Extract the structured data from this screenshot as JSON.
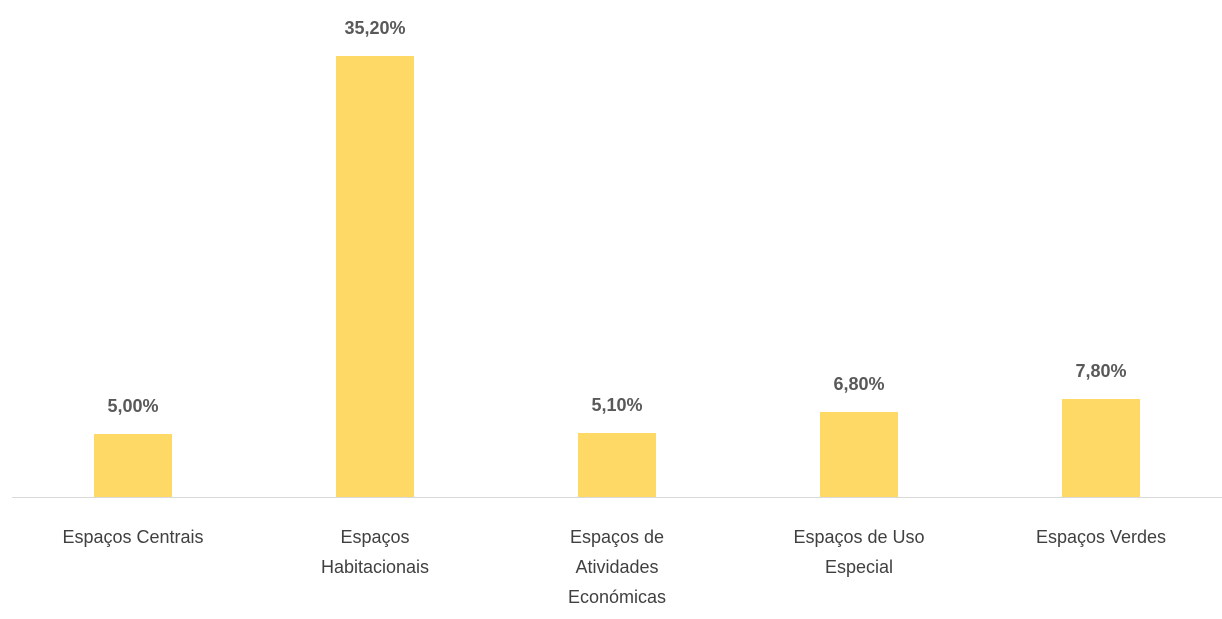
{
  "chart_data": {
    "type": "bar",
    "categories": [
      "Espaços Centrais",
      "Espaços Habitacionais",
      "Espaços de Atividades Económicas",
      "Espaços de Uso Especial",
      "Espaços Verdes"
    ],
    "values": [
      5.0,
      35.2,
      5.1,
      6.8,
      7.8
    ],
    "value_labels": [
      "5,00%",
      "35,20%",
      "5,10%",
      "6,80%",
      "7,80%"
    ],
    "color": "#ffd966",
    "ylim": [
      0,
      36
    ]
  }
}
